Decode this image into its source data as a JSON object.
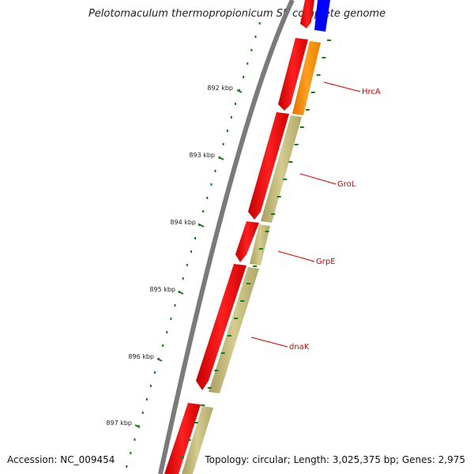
{
  "title": "Pelotomaculum thermopropionicum SI, complete genome",
  "footer": {
    "accession": "Accession: NC_009454",
    "summary": "Topology: circular; Length: 3,025,375 bp; Genes: 2,975"
  },
  "scale": {
    "ticks": [
      "892 kbp",
      "893 kbp",
      "894 kbp",
      "895 kbp",
      "896 kbp",
      "897 kbp"
    ]
  },
  "genes": [
    {
      "name": "HrcA",
      "color": "#ff8c00"
    },
    {
      "name": "GroL",
      "color": "#c8c080"
    },
    {
      "name": "GrpE",
      "color": "#c8c080"
    },
    {
      "name": "dnaK",
      "color": "#c8c080"
    }
  ],
  "colors": {
    "backbone": "#808080",
    "cds": "#ff0000",
    "blue_feature": "#0000ff",
    "tick": "#1a7a1a",
    "label": "#cc0000"
  }
}
